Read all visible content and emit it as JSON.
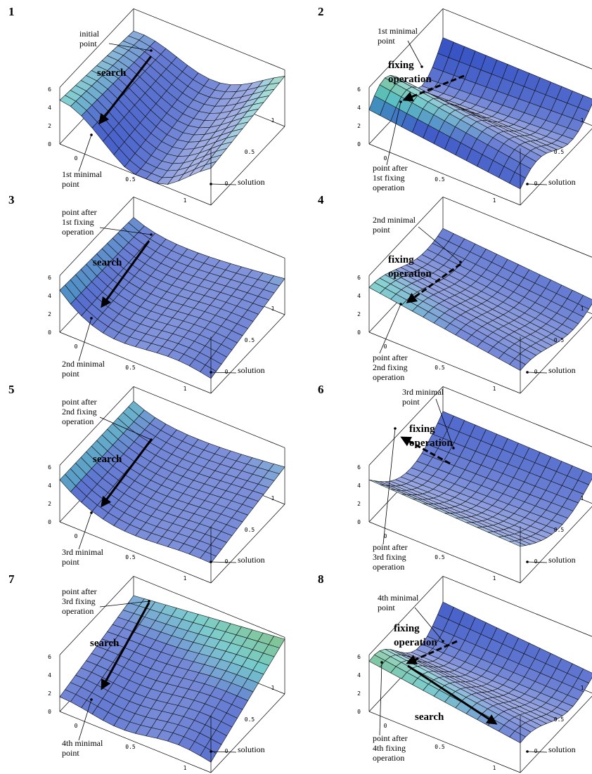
{
  "panels": [
    {
      "number": "1",
      "labels": [
        [
          "initial",
          "point"
        ],
        [
          "search"
        ],
        [
          "1st minimal",
          "point"
        ],
        [
          "solution"
        ]
      ],
      "z_ticks": [
        "0",
        "2",
        "4",
        "6"
      ],
      "u_ticks": [
        "0",
        "0.5",
        "1"
      ],
      "v_ticks": [
        "0",
        "0.5",
        "1"
      ]
    },
    {
      "number": "2",
      "labels": [
        [
          "1st minimal",
          "point"
        ],
        [
          "fixing",
          "operation"
        ],
        [
          "point after",
          "1st fixing",
          "operation"
        ],
        [
          "solution"
        ]
      ],
      "z_ticks": [
        "0",
        "2",
        "4",
        "6"
      ],
      "u_ticks": [
        "0",
        "0.5",
        "1"
      ],
      "v_ticks": [
        "0",
        "0.5",
        "1"
      ]
    },
    {
      "number": "3",
      "labels": [
        [
          "point after",
          "1st fixing",
          "operation"
        ],
        [
          "search"
        ],
        [
          "2nd minimal",
          "point"
        ],
        [
          "solution"
        ]
      ],
      "z_ticks": [
        "0",
        "2",
        "4",
        "6"
      ],
      "u_ticks": [
        "0",
        "0.5",
        "1"
      ],
      "v_ticks": [
        "0",
        "0.5",
        "1"
      ]
    },
    {
      "number": "4",
      "labels": [
        [
          "2nd minimal",
          "point"
        ],
        [
          "fixing",
          "operation"
        ],
        [
          "point after",
          "2nd fixing",
          "operation"
        ],
        [
          "solution"
        ]
      ],
      "z_ticks": [
        "0",
        "2",
        "4",
        "6"
      ],
      "u_ticks": [
        "0",
        "0.5",
        "1"
      ],
      "v_ticks": [
        "0",
        "0.5",
        "1"
      ]
    },
    {
      "number": "5",
      "labels": [
        [
          "point after",
          "2nd fixing",
          "operation"
        ],
        [
          "search"
        ],
        [
          "3rd minimal",
          "point"
        ],
        [
          "solution"
        ]
      ],
      "z_ticks": [
        "0",
        "2",
        "4",
        "6"
      ],
      "u_ticks": [
        "0",
        "0.5",
        "1"
      ],
      "v_ticks": [
        "0",
        "0.5",
        "1"
      ]
    },
    {
      "number": "6",
      "labels": [
        [
          "3rd minimal",
          "point"
        ],
        [
          "fixing",
          "operation"
        ],
        [
          "point after",
          "3rd fixing",
          "operation"
        ],
        [
          "solution"
        ]
      ],
      "z_ticks": [
        "0",
        "2",
        "4",
        "6"
      ],
      "u_ticks": [
        "0",
        "0.5",
        "1"
      ],
      "v_ticks": [
        "0",
        "0.5",
        "1"
      ]
    },
    {
      "number": "7",
      "labels": [
        [
          "point after",
          "3rd fixing",
          "operation"
        ],
        [
          "search"
        ],
        [
          "4th minimal",
          "point"
        ],
        [
          "solution"
        ]
      ],
      "z_ticks": [
        "0",
        "2",
        "4",
        "6"
      ],
      "u_ticks": [
        "0",
        "0.5",
        "1"
      ],
      "v_ticks": [
        "0",
        "0.5",
        "1"
      ]
    },
    {
      "number": "8",
      "labels": [
        [
          "4th minimal",
          "point"
        ],
        [
          "fixing",
          "operation"
        ],
        [
          "search"
        ],
        [
          "point after",
          "4th fixing",
          "operation"
        ],
        [
          "solution"
        ]
      ],
      "z_ticks": [
        "0",
        "2",
        "4",
        "6"
      ],
      "u_ticks": [
        "0",
        "0.5",
        "1"
      ],
      "v_ticks": [
        "0",
        "0.5",
        "1"
      ]
    }
  ]
}
